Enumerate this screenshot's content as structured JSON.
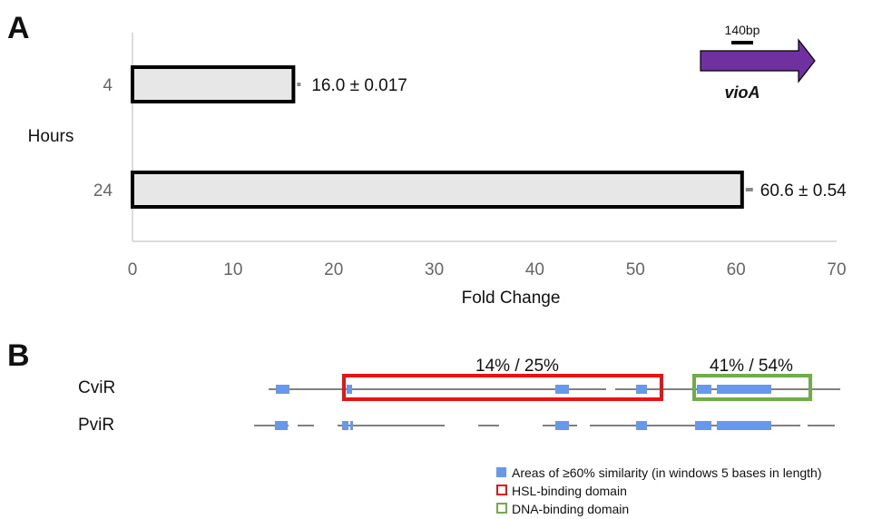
{
  "panel_a_letter": "A",
  "panel_b_letter": "B",
  "chart_data": {
    "type": "bar",
    "orientation": "horizontal",
    "categories": [
      "4",
      "24"
    ],
    "values": [
      16.0,
      60.6
    ],
    "errors": [
      0.017,
      0.54
    ],
    "value_labels": [
      "16.0 ± 0.017",
      "60.6 ± 0.54"
    ],
    "xlabel": "Fold Change",
    "ylabel": "Hours",
    "xlim": [
      0,
      70
    ],
    "xticks": [
      0,
      10,
      20,
      30,
      40,
      50,
      60,
      70
    ],
    "grid": false
  },
  "gene_diagram": {
    "scale_label": "140bp",
    "gene_name": "vioA",
    "arrow_color": "#7030a0"
  },
  "alignment": {
    "proteins": [
      "CviR",
      "PviR"
    ],
    "hsl_pct": "14% / 25%",
    "dna_pct": "41% / 54%",
    "colors": {
      "similarity": "#6699ee",
      "hsl_box": "#ee1111",
      "dna_box": "#70ad47"
    },
    "legend": [
      "Areas of ≥60% similarity (in windows 5 bases in length)",
      "HSL-binding domain",
      "DNA-binding domain"
    ]
  }
}
